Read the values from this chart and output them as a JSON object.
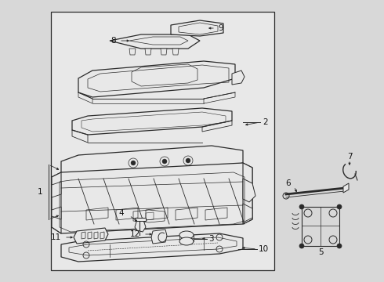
{
  "bg_color": "#d8d8d8",
  "box_bg": "#e8e8e8",
  "line_color": "#2a2a2a",
  "label_color": "#111111",
  "fig_w": 4.9,
  "fig_h": 3.6,
  "dpi": 100
}
